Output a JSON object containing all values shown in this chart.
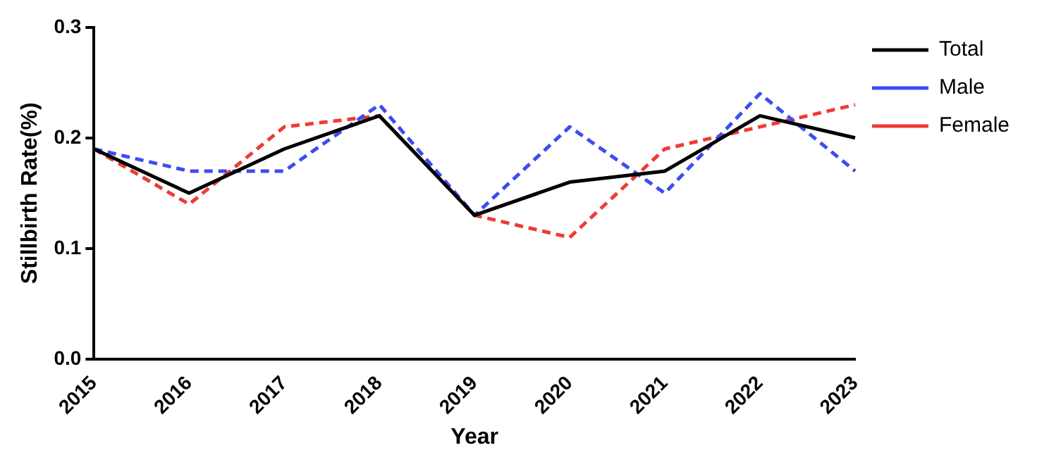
{
  "chart_data": {
    "type": "line",
    "xlabel": "Year",
    "ylabel": "Stillbirth Rate(%)",
    "categories": [
      "2015",
      "2016",
      "2017",
      "2018",
      "2019",
      "2020",
      "2021",
      "2022",
      "2023"
    ],
    "series": [
      {
        "name": "Total",
        "color": "#000000",
        "line_style": "solid",
        "values": [
          0.19,
          0.15,
          0.19,
          0.22,
          0.13,
          0.16,
          0.17,
          0.22,
          0.2
        ]
      },
      {
        "name": "Male",
        "color": "#3d4cf2",
        "line_style": "dashed",
        "values": [
          0.19,
          0.17,
          0.17,
          0.23,
          0.13,
          0.21,
          0.15,
          0.24,
          0.17
        ]
      },
      {
        "name": "Female",
        "color": "#ee3b36",
        "line_style": "dashed",
        "values": [
          0.19,
          0.14,
          0.21,
          0.22,
          0.13,
          0.11,
          0.19,
          0.21,
          0.23
        ]
      }
    ],
    "ylim": [
      0,
      0.3
    ],
    "yticks": [
      {
        "value": 0,
        "label": "0.0"
      },
      0.1,
      0.2,
      0.3
    ],
    "grid": false,
    "legend": "top right",
    "marker": "none"
  }
}
